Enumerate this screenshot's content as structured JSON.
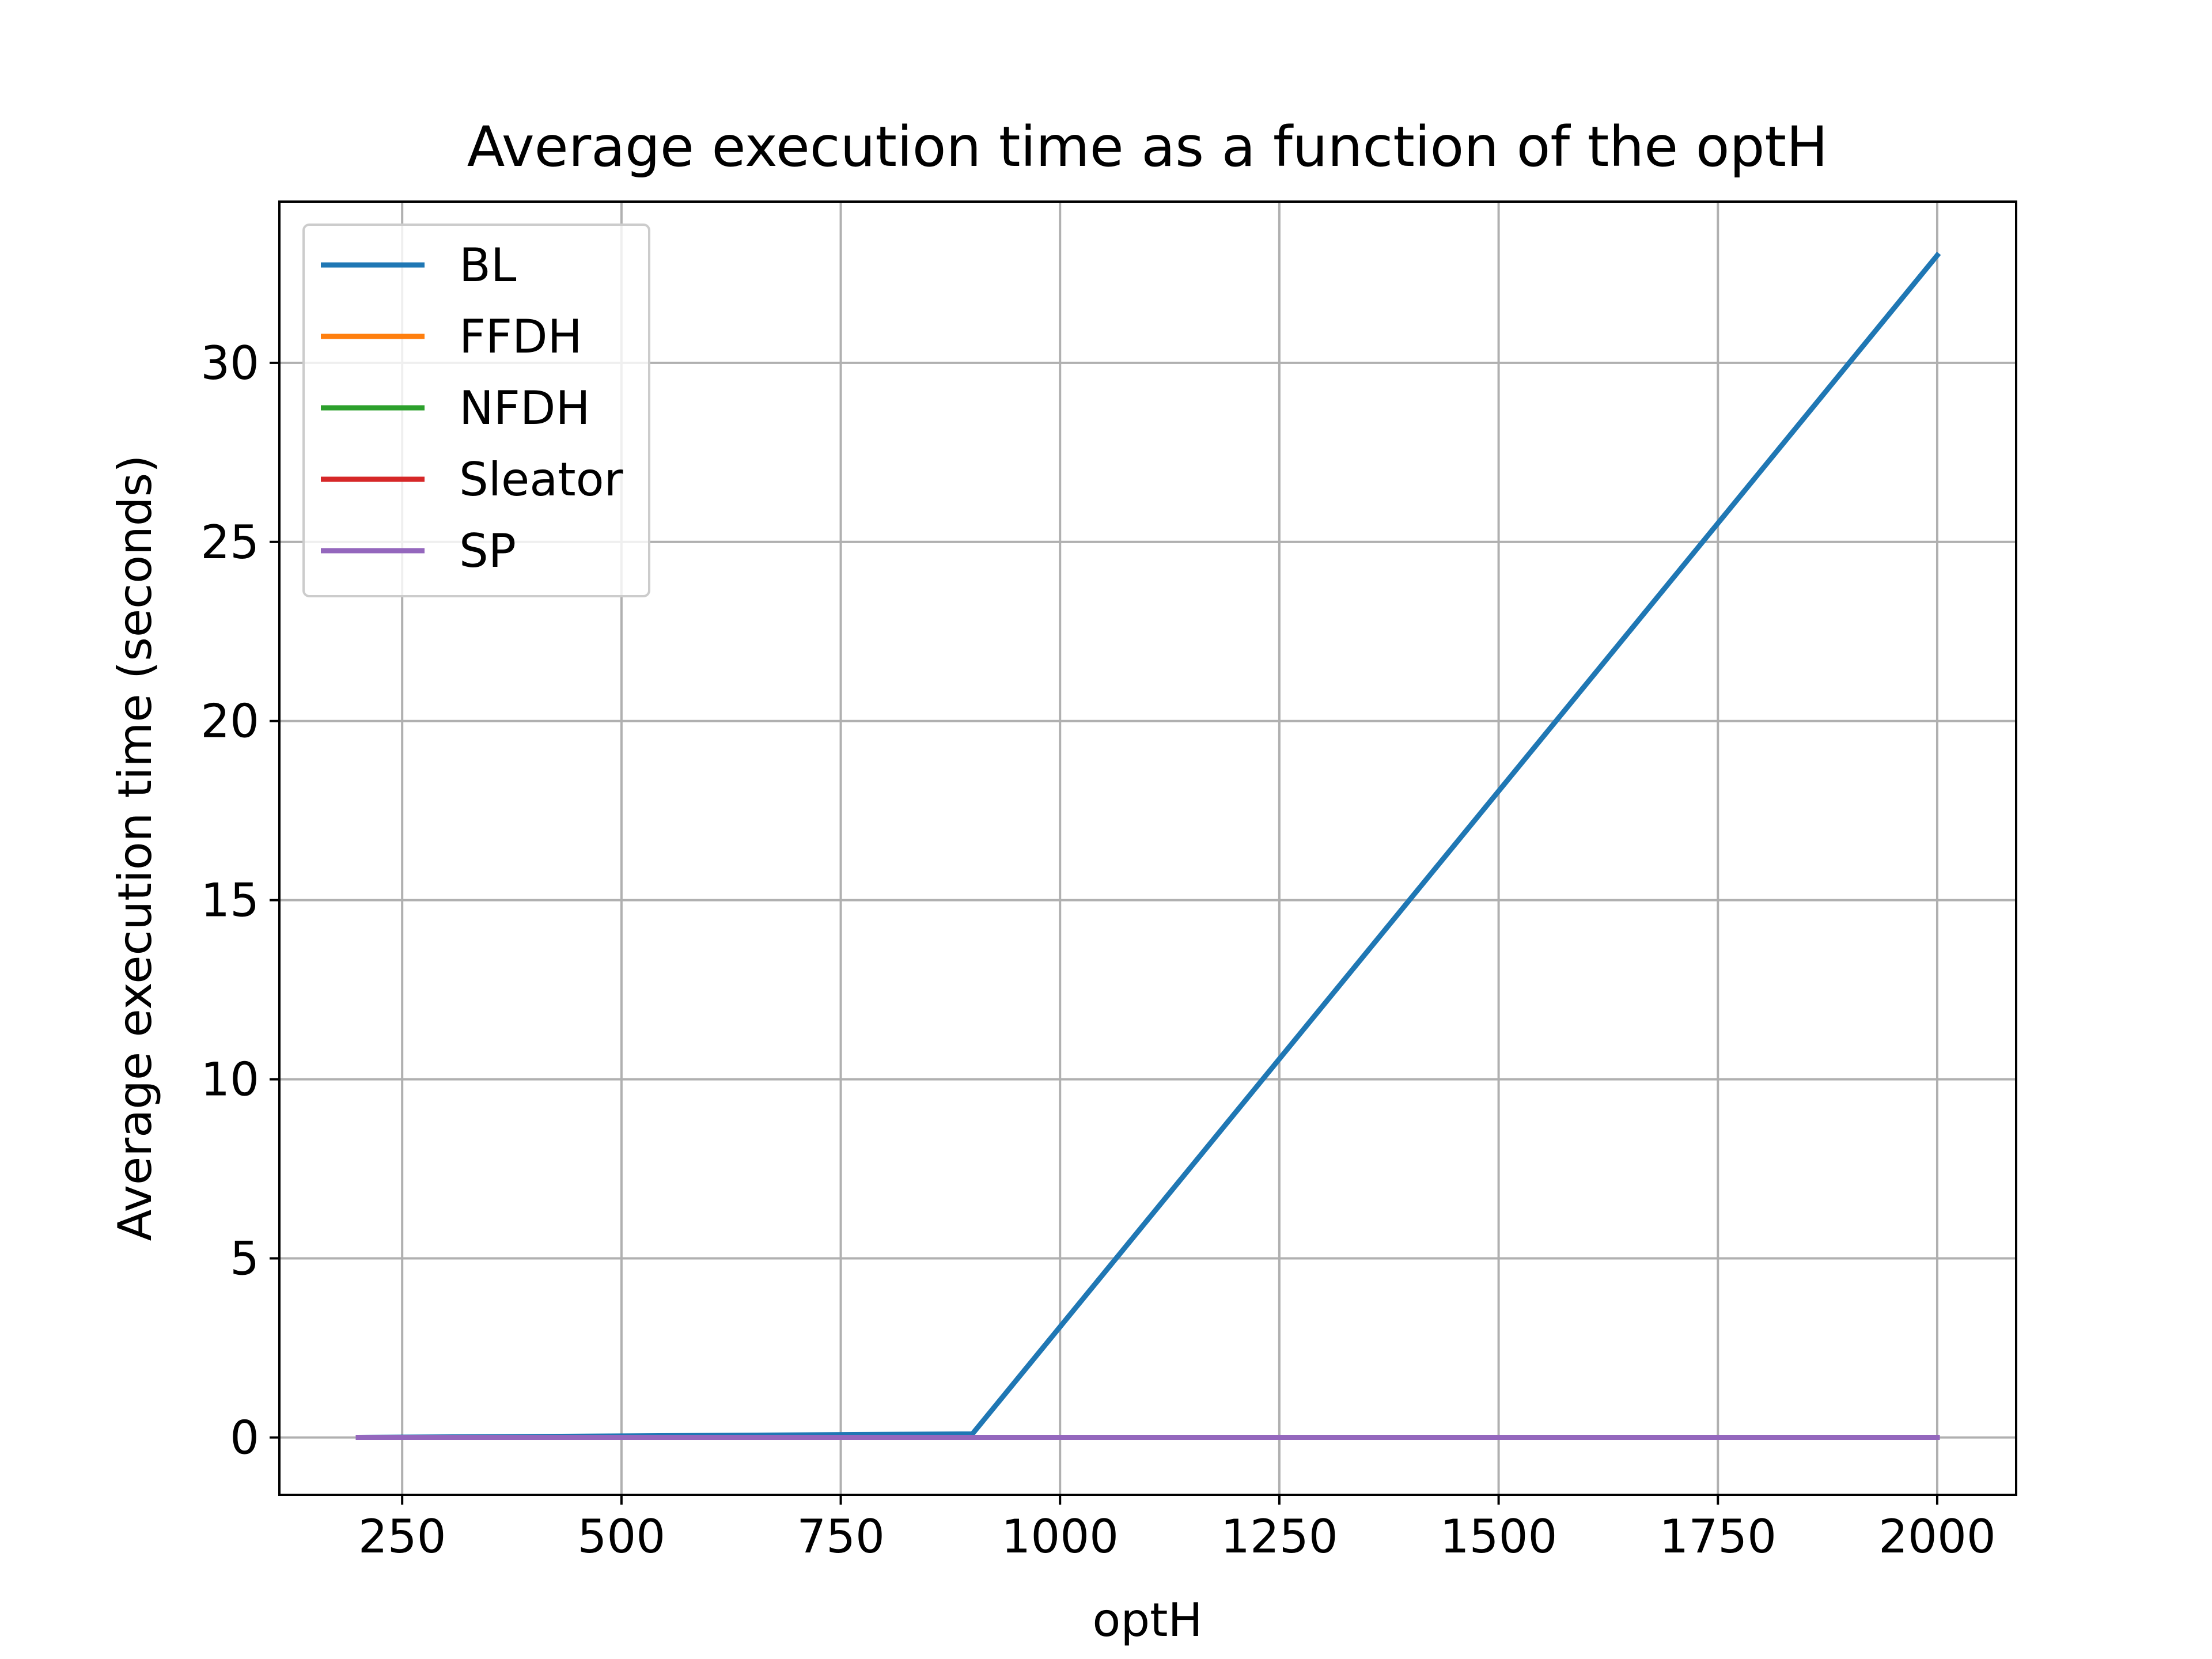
{
  "chart_data": {
    "type": "line",
    "title": "Average execution time as a function of the optH",
    "xlabel": "optH",
    "ylabel": "Average execution time (seconds)",
    "xlim": [
      110,
      2090
    ],
    "ylim": [
      -1.6,
      34.5
    ],
    "xticks": [
      250,
      500,
      750,
      1000,
      1250,
      1500,
      1750,
      2000
    ],
    "yticks": [
      0,
      5,
      10,
      15,
      20,
      25,
      30
    ],
    "grid": true,
    "legend_position": "top-left",
    "series": [
      {
        "name": "BL",
        "color": "#1f77b4",
        "x": [
          200,
          900,
          2000
        ],
        "y": [
          0.0,
          0.1,
          33.0
        ]
      },
      {
        "name": "FFDH",
        "color": "#ff7f0e",
        "x": [
          200,
          2000
        ],
        "y": [
          0.0,
          0.0
        ]
      },
      {
        "name": "NFDH",
        "color": "#2ca02c",
        "x": [
          200,
          2000
        ],
        "y": [
          0.0,
          0.0
        ]
      },
      {
        "name": "Sleator",
        "color": "#d62728",
        "x": [
          200,
          2000
        ],
        "y": [
          0.0,
          0.0
        ]
      },
      {
        "name": "SP",
        "color": "#9467bd",
        "x": [
          200,
          2000
        ],
        "y": [
          0.0,
          0.0
        ]
      }
    ]
  }
}
